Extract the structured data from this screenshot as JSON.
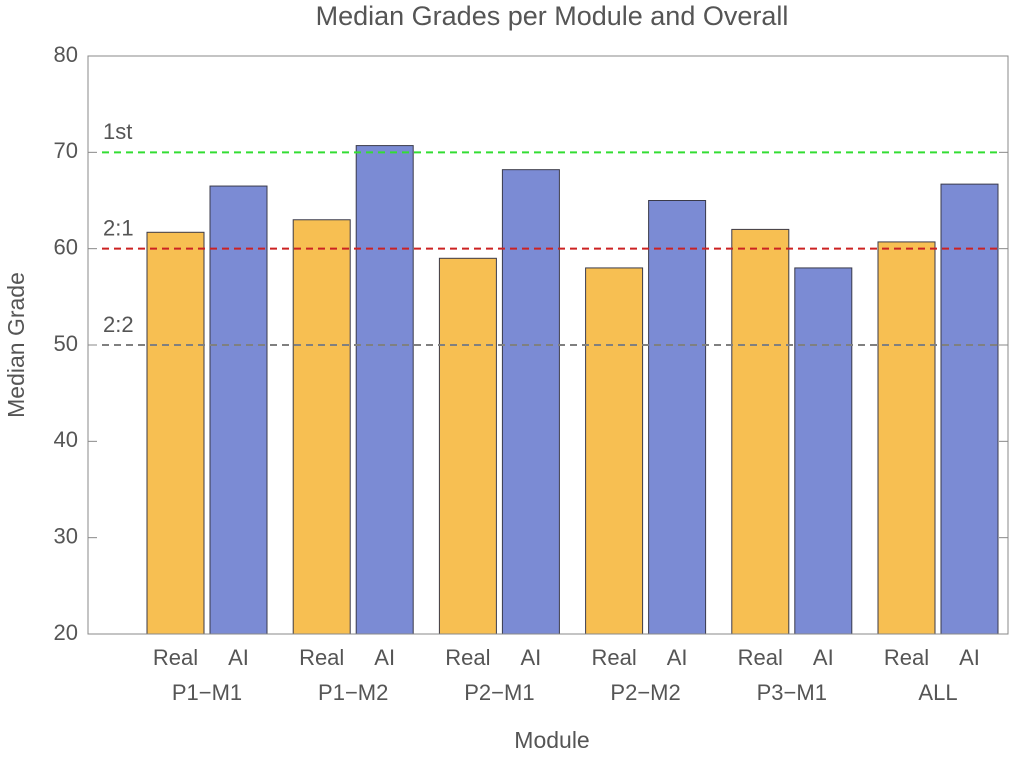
{
  "chart_data": {
    "type": "grouped-bar",
    "title": "Median Grades per Module and Overall",
    "x_label": "Module",
    "y_label": "Median Grade",
    "categories": [
      "P1−M1",
      "P1−M2",
      "P2−M1",
      "P2−M2",
      "P3−M1",
      "ALL"
    ],
    "series": [
      {
        "name": "Real",
        "color": "#f7bf52",
        "values": [
          61.7,
          63,
          59,
          58,
          62,
          60.7
        ]
      },
      {
        "name": "AI",
        "color": "#7b8bd4",
        "values": [
          66.5,
          70.7,
          68.2,
          65,
          58,
          66.7
        ]
      }
    ],
    "reference_lines": [
      {
        "label": "1st",
        "value": 70,
        "color": "#33dd33"
      },
      {
        "label": "2:1",
        "value": 60,
        "color": "#cc2222"
      },
      {
        "label": "2:2",
        "value": 50,
        "color": "#808080"
      }
    ],
    "ylim": [
      20,
      80
    ],
    "yticks": [
      20,
      30,
      40,
      50,
      60,
      70,
      80
    ]
  }
}
